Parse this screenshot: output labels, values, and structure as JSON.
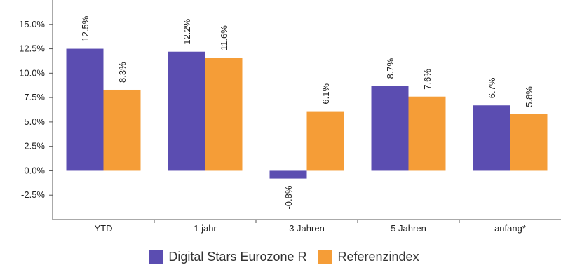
{
  "chart_data": {
    "type": "bar",
    "categories": [
      "YTD",
      "1 jahr",
      "3 Jahren",
      "5 Jahren",
      "anfang*"
    ],
    "series": [
      {
        "name": "Digital Stars Eurozone R",
        "color": "#5b4db1",
        "values": [
          12.5,
          12.2,
          -0.8,
          8.7,
          6.7
        ],
        "labels": [
          "12.5%",
          "12.2%",
          "-0.8%",
          "8.7%",
          "6.7%"
        ]
      },
      {
        "name": "Referenzindex",
        "color": "#f59d37",
        "values": [
          8.3,
          11.6,
          6.1,
          7.6,
          5.8
        ],
        "labels": [
          "8.3%",
          "11.6%",
          "6.1%",
          "7.6%",
          "5.8%"
        ]
      }
    ],
    "ylim": [
      -5,
      17.5
    ],
    "yticks": [
      -2.5,
      0.0,
      2.5,
      5.0,
      7.5,
      10.0,
      12.5,
      15.0
    ],
    "ytick_labels": [
      "-2.5%",
      "0.0%",
      "2.5%",
      "5.0%",
      "7.5%",
      "10.0%",
      "12.5%",
      "15.0%"
    ],
    "grid": false,
    "legend": "bottom-center",
    "title": "",
    "xlabel": "",
    "ylabel": ""
  }
}
